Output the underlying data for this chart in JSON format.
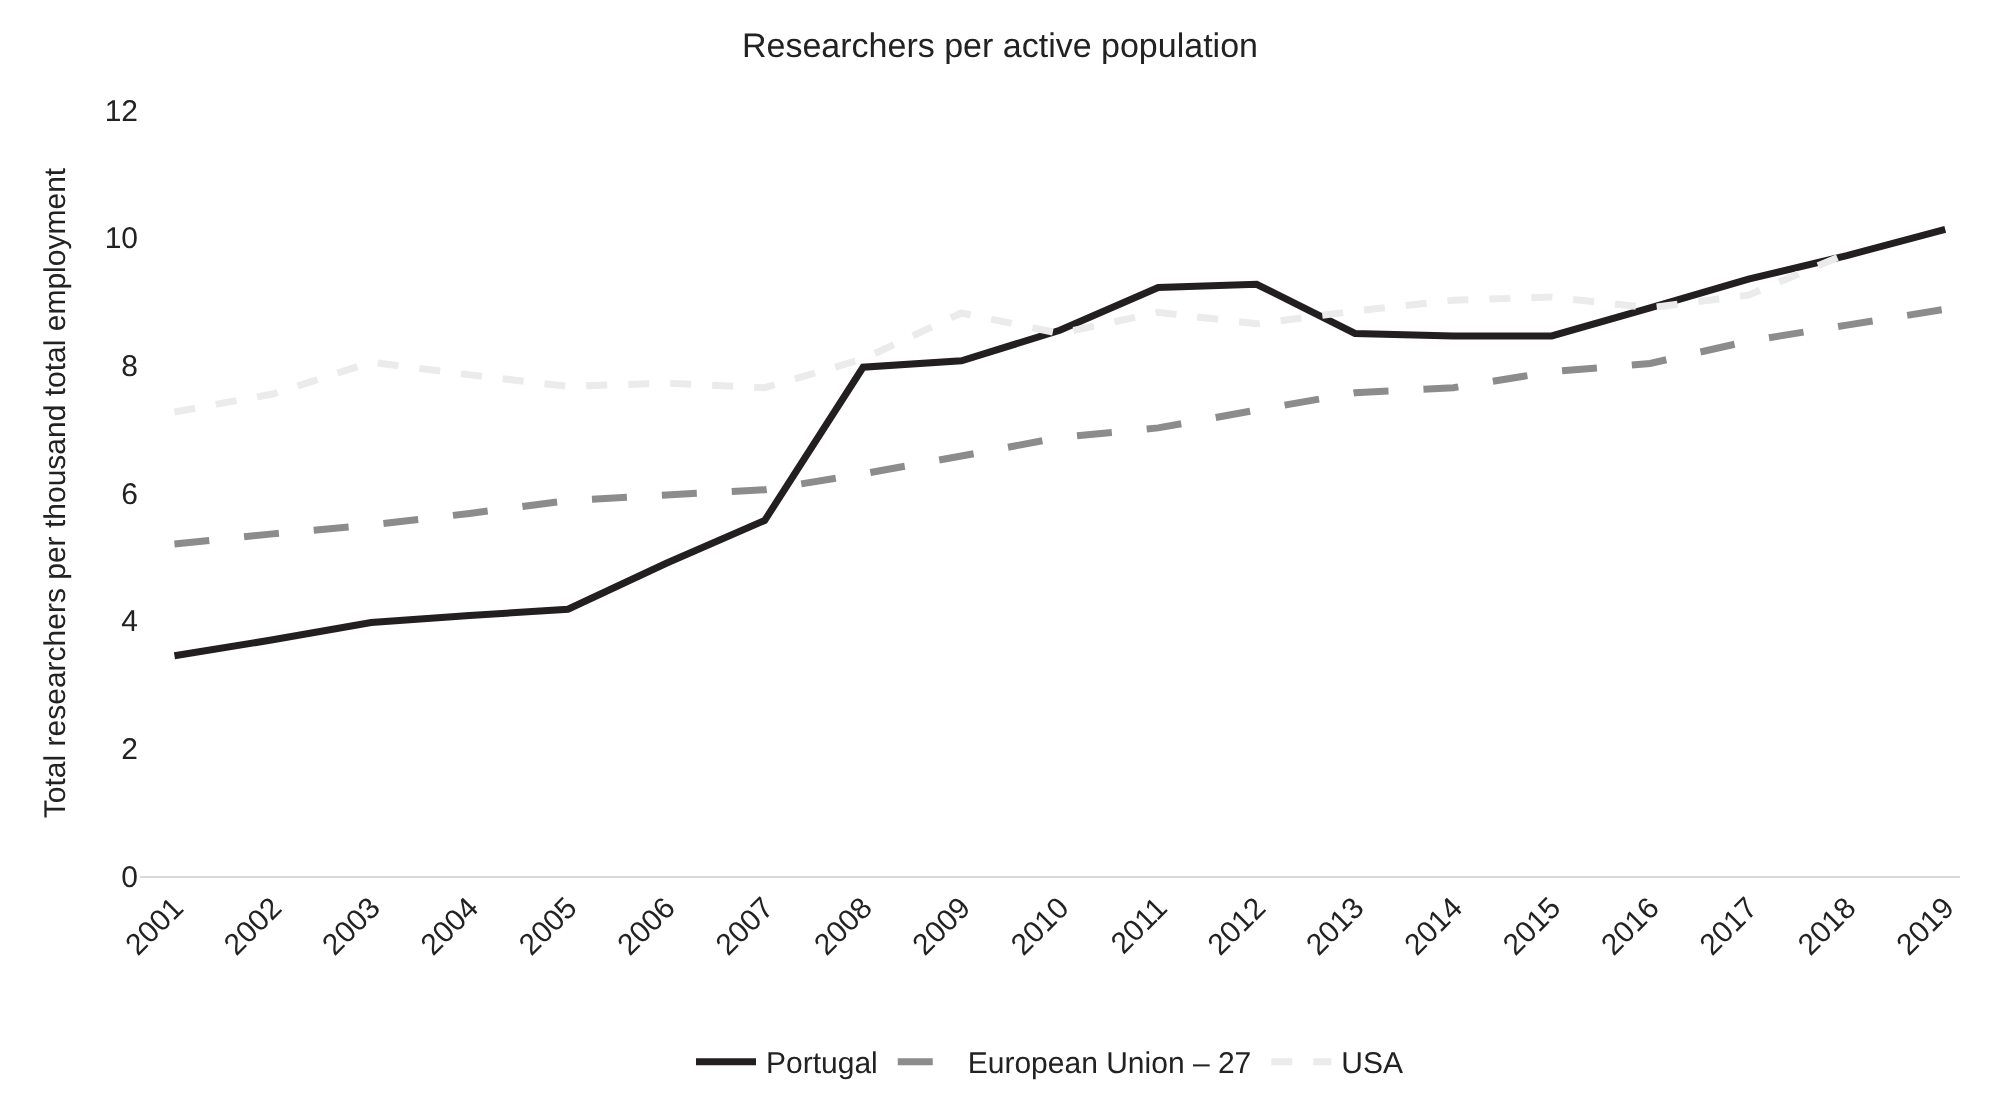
{
  "chart_data": {
    "type": "line",
    "title": "Researchers per active population",
    "ylabel": "Total researchers per thousand total employment",
    "categories": [
      "2001",
      "2002",
      "2003",
      "2004",
      "2005",
      "2006",
      "2007",
      "2008",
      "2009",
      "2010",
      "2011",
      "2012",
      "2013",
      "2014",
      "2015",
      "2016",
      "2017",
      "2018",
      "2019"
    ],
    "series": [
      {
        "name": "Portugal",
        "color": "#231f20",
        "line_style": "solid",
        "values": [
          3.45,
          3.7,
          3.97,
          4.08,
          4.18,
          4.9,
          5.57,
          7.97,
          8.07,
          8.55,
          9.22,
          9.27,
          8.5,
          8.46,
          8.46,
          8.9,
          9.35,
          9.72,
          10.13
        ]
      },
      {
        "name": "European Union – 27",
        "color": "#8c8c8c",
        "line_style": "dashed",
        "values": [
          5.2,
          5.36,
          5.5,
          5.68,
          5.88,
          5.97,
          6.05,
          6.3,
          6.58,
          6.87,
          7.02,
          7.3,
          7.57,
          7.65,
          7.9,
          8.03,
          8.38,
          8.63,
          8.88
        ]
      },
      {
        "name": "USA",
        "color": "#ebebeb",
        "line_style": "dotted",
        "values": [
          7.27,
          7.55,
          8.05,
          7.85,
          7.67,
          7.72,
          7.65,
          8.1,
          8.82,
          8.5,
          8.83,
          8.65,
          8.85,
          9.02,
          9.07,
          8.9,
          9.1,
          9.75,
          null
        ]
      }
    ],
    "ylim": [
      0,
      12
    ],
    "yticks": [
      0,
      2,
      4,
      6,
      8,
      10,
      12
    ],
    "grid": false,
    "legend": "bottom",
    "marker": "none"
  }
}
